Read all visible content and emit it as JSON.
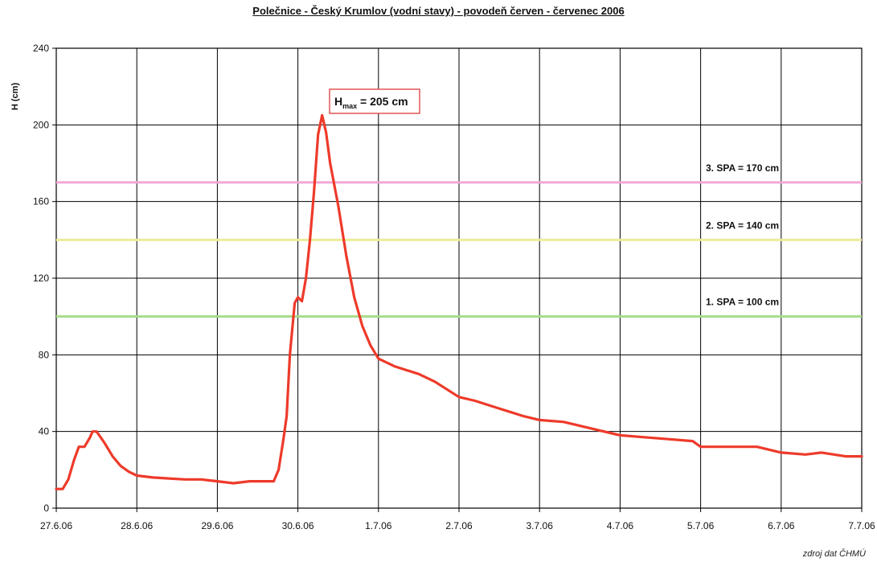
{
  "chart_data": {
    "type": "line",
    "title": "Polečnice - Český Krumlov (vodní stavy) - povodeň červen - červenec 2006",
    "ylabel": "H (cm)",
    "xlabel": "",
    "ylim": [
      0,
      240
    ],
    "xlim": [
      0,
      10
    ],
    "yticks": [
      0,
      40,
      80,
      120,
      160,
      200,
      240
    ],
    "xticks": [
      "27.6.06",
      "28.6.06",
      "29.6.06",
      "30.6.06",
      "1.7.06",
      "2.7.06",
      "3.7.06",
      "4.7.06",
      "5.7.06",
      "6.7.06",
      "7.7.06"
    ],
    "grid": true,
    "source": "zdroj dat ČHMÚ",
    "colors": {
      "series": "#ee3a2a",
      "spa1": "#a6dc8a",
      "spa2": "#ecec9a",
      "spa3": "#f2a6d6",
      "grid": "#000000"
    },
    "thresholds": [
      {
        "label": "1. SPA = 100 cm",
        "value": 100,
        "color": "#a6dc8a"
      },
      {
        "label": "2. SPA = 140 cm",
        "value": 140,
        "color": "#ecec9a"
      },
      {
        "label": "3. SPA = 170 cm",
        "value": 170,
        "color": "#f2a6d6"
      }
    ],
    "annotation": {
      "text_main": "H",
      "text_sub": "max",
      "text_tail": " = 205 cm",
      "x": 3.3,
      "y": 205
    },
    "series": [
      {
        "color": "#ee3a2a",
        "x": [
          0,
          0.08,
          0.15,
          0.22,
          0.28,
          0.35,
          0.42,
          0.45,
          0.5,
          0.6,
          0.7,
          0.8,
          0.9,
          1.0,
          1.2,
          1.4,
          1.6,
          1.8,
          2.0,
          2.2,
          2.4,
          2.6,
          2.7,
          2.76,
          2.82,
          2.86,
          2.9,
          2.96,
          3.0,
          3.05,
          3.1,
          3.15,
          3.2,
          3.25,
          3.3,
          3.35,
          3.4,
          3.5,
          3.6,
          3.7,
          3.8,
          3.9,
          4.0,
          4.2,
          4.5,
          4.7,
          5.0,
          5.2,
          5.5,
          5.8,
          6.0,
          6.3,
          6.7,
          7.0,
          7.3,
          7.6,
          7.9,
          8.0,
          8.3,
          8.7,
          9.0,
          9.3,
          9.5,
          9.8,
          10.0
        ],
        "values": [
          10,
          10,
          15,
          25,
          32,
          32,
          37,
          40,
          40,
          34,
          27,
          22,
          19,
          17,
          16,
          15.5,
          15,
          15,
          14,
          13,
          14,
          14,
          14,
          20,
          36,
          48,
          80,
          107,
          110,
          108,
          120,
          140,
          165,
          195,
          205,
          196,
          180,
          158,
          132,
          110,
          95,
          85,
          78,
          74,
          70,
          66,
          58,
          56,
          52,
          48,
          46,
          45,
          41,
          38,
          37,
          36,
          35,
          32,
          32,
          32,
          29,
          28,
          29,
          27,
          27
        ]
      }
    ]
  }
}
